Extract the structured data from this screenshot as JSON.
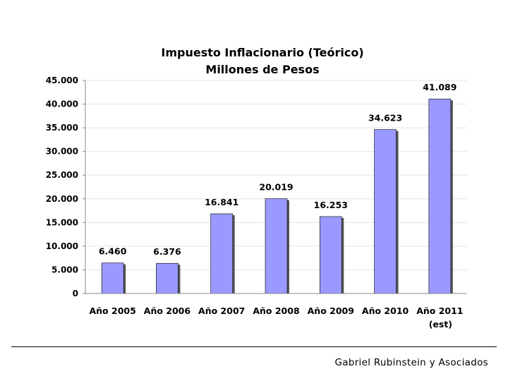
{
  "chart_data": {
    "type": "bar",
    "title": "Impuesto Inflacionario (Teórico)",
    "subtitle": "Millones de Pesos",
    "categories": [
      "Año 2005",
      "Año 2006",
      "Año 2007",
      "Año 2008",
      "Año 2009",
      "Año 2010",
      "Año 2011"
    ],
    "category_sublabels": [
      "",
      "",
      "",
      "",
      "",
      "",
      "(est)"
    ],
    "values": [
      6460,
      6376,
      16841,
      20019,
      16253,
      34623,
      41089
    ],
    "value_labels": [
      "6.460",
      "6.376",
      "16.841",
      "20.019",
      "16.253",
      "34.623",
      "41.089"
    ],
    "yticks": [
      0,
      5000,
      10000,
      15000,
      20000,
      25000,
      30000,
      35000,
      40000,
      45000
    ],
    "ytick_labels": [
      "0",
      "5.000",
      "10.000",
      "15.000",
      "20.000",
      "25.000",
      "30.000",
      "35.000",
      "40.000",
      "45.000"
    ],
    "ylim": [
      0,
      45000
    ],
    "grid": true,
    "legend": "none",
    "bar_color": "#9999ff",
    "bar_edge_color": "#000000"
  },
  "footer": {
    "text": "Gabriel Rubinstein y Asociados"
  }
}
